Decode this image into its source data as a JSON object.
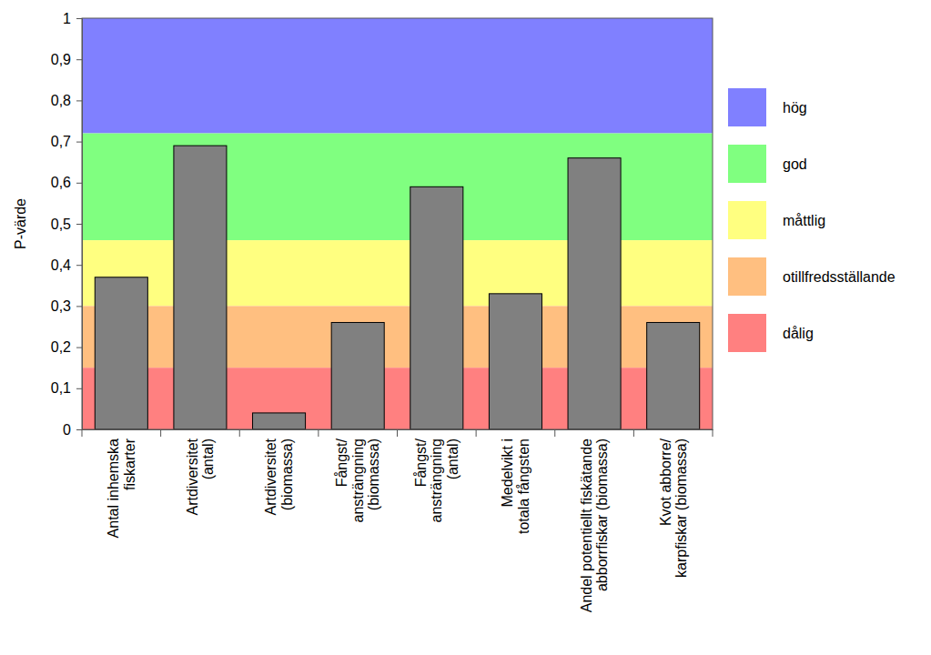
{
  "chart_data": {
    "type": "bar",
    "y_label": "P-värde",
    "categories": [
      "Antal inhemska\nfiskarter",
      "Artdiversitet\n(antal)",
      "Artdiversitet\n(biomassa)",
      "Fångst/\nansträngning\n(biomassa)",
      "Fångst/\nansträngning\n(antal)",
      "Medelvikt i\ntotala fångsten",
      "Andel potentiellt fiskätande\nabborrfiskar (biomassa)",
      "Kvot abborre/\nkarpfiskar (biomassa)"
    ],
    "values": [
      0.37,
      0.69,
      0.04,
      0.26,
      0.59,
      0.33,
      0.66,
      0.26
    ],
    "color": "#808080",
    "ylim": [
      0,
      1
    ],
    "yticks": [
      0,
      {
        "value": 0.1,
        "label": "0,1"
      },
      {
        "value": 0.2,
        "label": "0,2"
      },
      {
        "value": 0.3,
        "label": "0,3"
      },
      {
        "value": 0.4,
        "label": "0,4"
      },
      {
        "value": 0.5,
        "label": "0,5"
      },
      {
        "value": 0.6,
        "label": "0,6"
      },
      {
        "value": 0.7,
        "label": "0,7"
      },
      {
        "value": 0.8,
        "label": "0,8"
      },
      {
        "value": 0.9,
        "label": "0,9"
      },
      1
    ],
    "bands": [
      {
        "name": "hög",
        "color": "#8080ff",
        "from": 0.72,
        "to": 1
      },
      {
        "name": "god",
        "color": "#80ff80",
        "from": 0.46,
        "to": 0.72
      },
      {
        "name": "måttlig",
        "color": "#ffff80",
        "from": 0.3,
        "to": 0.46
      },
      {
        "name": "otillfredsställande",
        "color": "#ffbf80",
        "from": 0.15,
        "to": 0.3
      },
      {
        "name": "dålig",
        "color": "#ff8080",
        "from": 0,
        "to": 0.15
      }
    ],
    "grid": false
  }
}
